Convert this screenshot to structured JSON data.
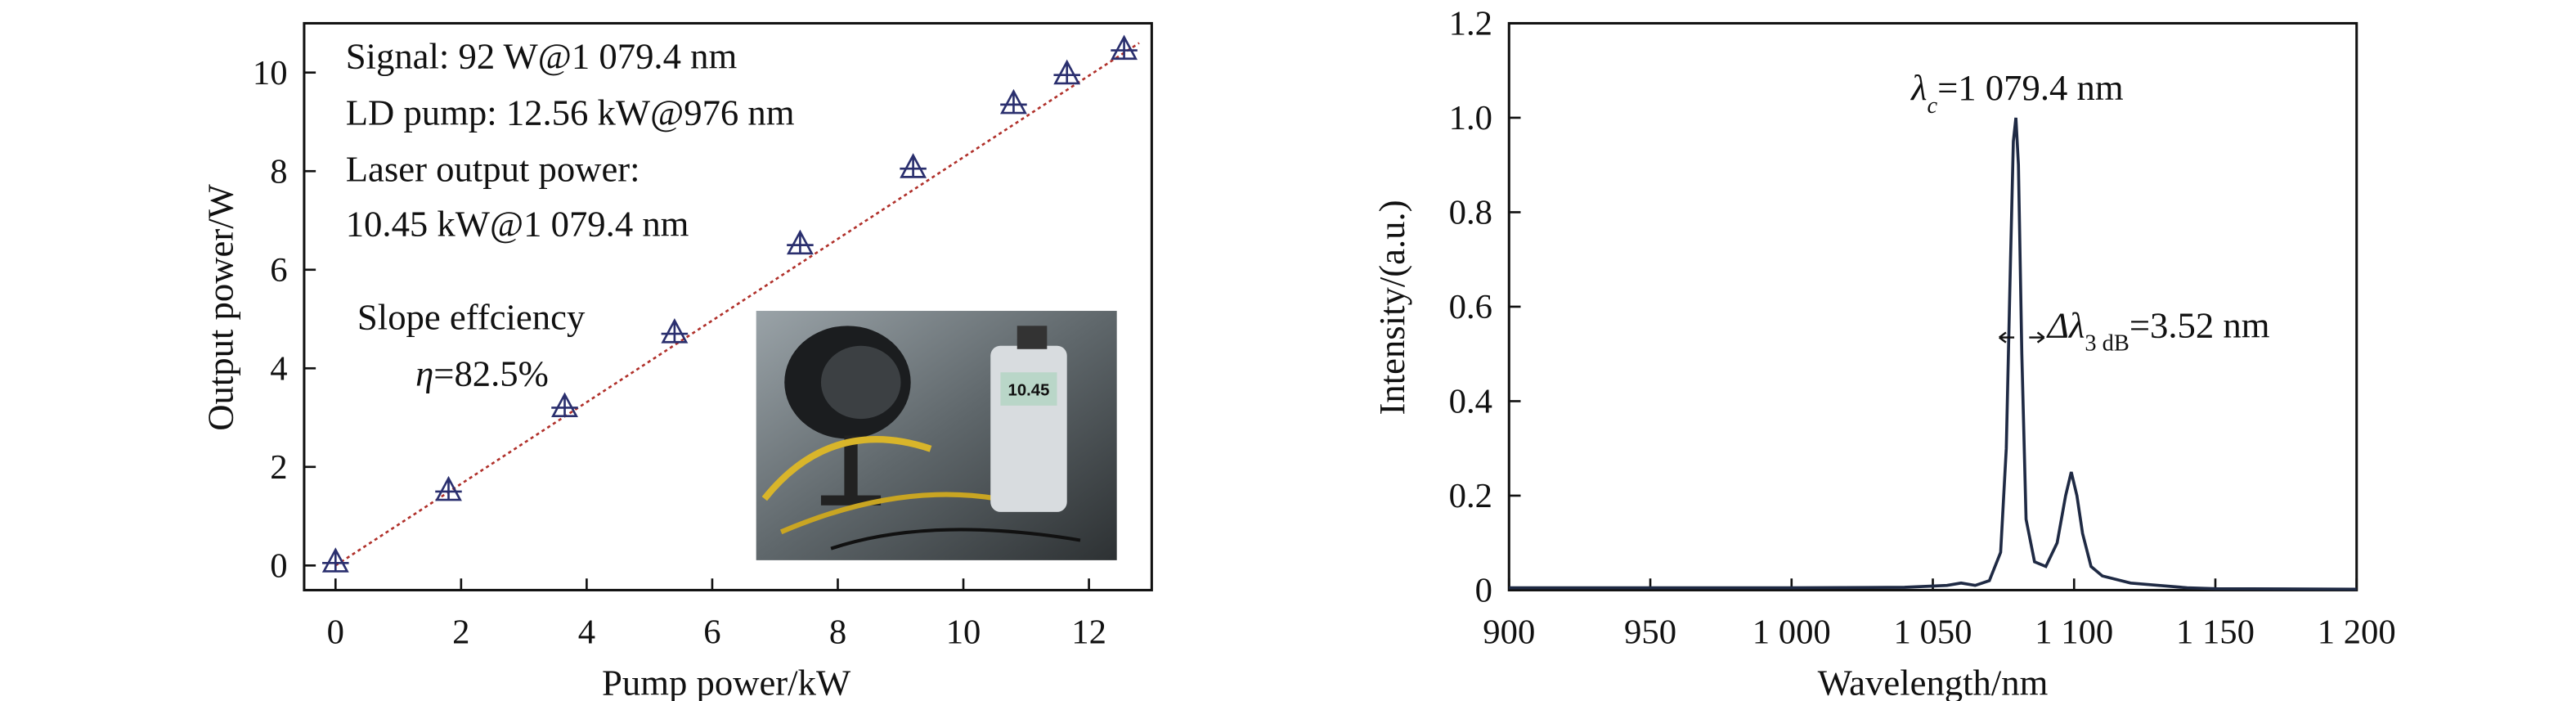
{
  "chart_data": [
    {
      "type": "scatter",
      "xlabel": "Pump power/kW",
      "ylabel": "Output power/W",
      "x": [
        0,
        1.8,
        3.65,
        5.4,
        7.4,
        9.2,
        10.8,
        11.65,
        12.56
      ],
      "series": [
        {
          "color": "#2a2f6e",
          "values": [
            0.05,
            1.5,
            3.2,
            4.7,
            6.5,
            8.05,
            9.35,
            9.95,
            10.45
          ]
        }
      ],
      "fit": {
        "color": "#b0302a",
        "x": [
          0,
          12.8
        ],
        "values": [
          0,
          10.6
        ]
      },
      "xlim": [
        -0.5,
        13
      ],
      "ylim": [
        -0.5,
        11
      ],
      "xticks": [
        0,
        2,
        4,
        6,
        8,
        10,
        12
      ],
      "yticks": [
        0,
        2,
        4,
        6,
        8,
        10
      ],
      "annotations": [
        "Signal: 92 W@1 079.4 nm",
        "LD pump: 12.56 kW@976 nm",
        "Laser output power:",
        "10.45 kW@1 079.4 nm",
        "Slope effciency"
      ],
      "slope_label": {
        "symbol": "η",
        "text": "=82.5%"
      },
      "inset_display": "10.45"
    },
    {
      "type": "line",
      "xlabel": "Wavelength/nm",
      "ylabel": "Intensity/(a.u.)",
      "x": [
        900,
        950,
        1000,
        1040,
        1055,
        1060,
        1065,
        1070,
        1074,
        1076,
        1077.5,
        1078.5,
        1079.4,
        1080.3,
        1081.5,
        1083,
        1086,
        1090,
        1094,
        1097,
        1099,
        1101,
        1103,
        1106,
        1110,
        1120,
        1130,
        1140,
        1150,
        1200
      ],
      "series": [
        {
          "color": "#1f2a44",
          "values": [
            0.005,
            0.005,
            0.005,
            0.006,
            0.01,
            0.015,
            0.01,
            0.02,
            0.08,
            0.3,
            0.7,
            0.95,
            1.0,
            0.9,
            0.5,
            0.15,
            0.06,
            0.05,
            0.1,
            0.2,
            0.25,
            0.2,
            0.12,
            0.05,
            0.03,
            0.015,
            0.01,
            0.005,
            0.003,
            0.002
          ]
        }
      ],
      "xlim": [
        900,
        1200
      ],
      "ylim": [
        0,
        1.2
      ],
      "xticks": [
        900,
        950,
        {
          "value": 1000,
          "label": "1 000"
        },
        {
          "value": 1050,
          "label": "1 050"
        },
        {
          "value": 1100,
          "label": "1 100"
        },
        {
          "value": 1150,
          "label": "1 150"
        },
        {
          "value": 1200,
          "label": "1 200"
        }
      ],
      "yticks": [
        0,
        0.2,
        0.4,
        0.6,
        0.8,
        {
          "value": 1.0,
          "label": "1.0"
        },
        {
          "value": 1.2,
          "label": "1.2"
        }
      ],
      "peak_label": {
        "symbol": "λ",
        "sub": "c",
        "text": "=1 079.4 nm"
      },
      "bandwidth_label": {
        "symbol": "Δλ",
        "sub": "3 dB",
        "text": "=3.52 nm"
      }
    }
  ]
}
